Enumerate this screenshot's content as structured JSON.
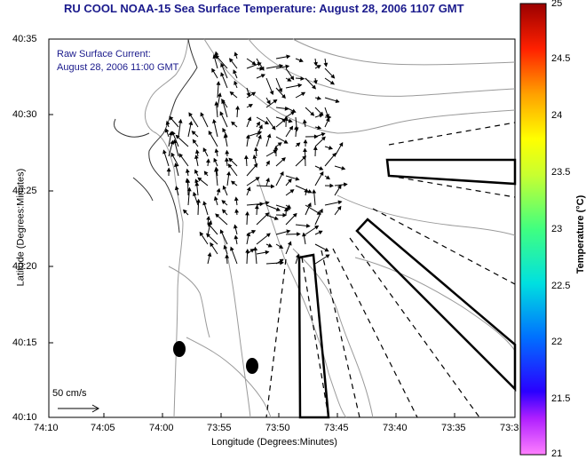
{
  "title": "RU COOL  NOAA-15  Sea Surface Temperature:  August 28, 2006 1107 GMT",
  "annotation_line1": "Raw Surface Current:",
  "annotation_line2": "August 28, 2006 11:00 GMT",
  "scale_label": "50 cm/s",
  "xlabel": "Longitude (Degrees:Minutes)",
  "ylabel": "Latitude (Degrees:Minutes)",
  "colorbar_label": "Temperature (°C)",
  "yticks": [
    "40:35",
    "40:30",
    "40:25",
    "40:20",
    "40:15",
    "40:10"
  ],
  "xticks": [
    "74:10",
    "74:05",
    "74:00",
    "73:55",
    "73:50",
    "73:45",
    "73:40",
    "73:35",
    "73:3"
  ],
  "cticks": [
    "25",
    "24.5",
    "24",
    "23.5",
    "23",
    "22.5",
    "22",
    "21.5",
    "21"
  ],
  "colors": {
    "title": "#1a1a8c",
    "land": "#ffffff",
    "contour": "#9a9a9a",
    "vector": "#000000"
  }
}
